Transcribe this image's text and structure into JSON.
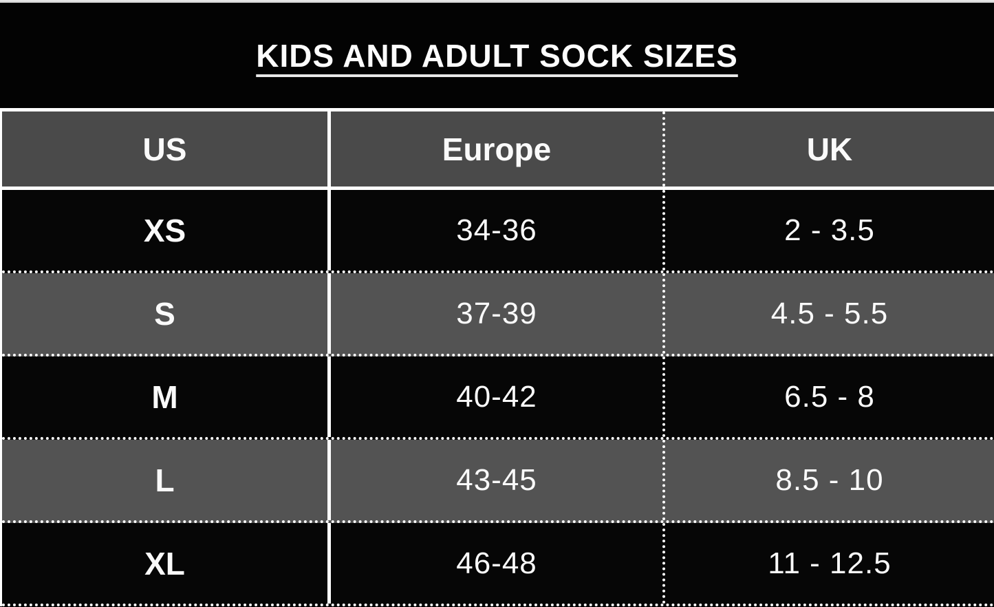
{
  "title": "KIDS AND ADULT SOCK SIZES",
  "columns": {
    "us": "US",
    "europe": "Europe",
    "uk": "UK"
  },
  "rows": [
    {
      "us": "XS",
      "europe": "34-36",
      "uk": "2 - 3.5"
    },
    {
      "us": "S",
      "europe": "37-39",
      "uk": "4.5 - 5.5"
    },
    {
      "us": "M",
      "europe": "40-42",
      "uk": "6.5 - 8"
    },
    {
      "us": "L",
      "europe": "43-45",
      "uk": "8.5 - 10"
    },
    {
      "us": "XL",
      "europe": "46-48",
      "uk": "11 - 12.5"
    }
  ],
  "colors": {
    "title_bg": "#030303",
    "header_bg": "#4a4a4a",
    "row_dark": "#060606",
    "row_light": "#535353",
    "grid_border": "#ffffff",
    "text": "#fafafa",
    "page_top_strip": "#e3e3e3"
  },
  "chart_data": {
    "type": "table",
    "title": "KIDS AND ADULT SOCK SIZES",
    "columns": [
      "US",
      "Europe",
      "UK"
    ],
    "rows": [
      [
        "XS",
        "34-36",
        "2 - 3.5"
      ],
      [
        "S",
        "37-39",
        "4.5 - 5.5"
      ],
      [
        "M",
        "40-42",
        "6.5 - 8"
      ],
      [
        "L",
        "43-45",
        "8.5 - 10"
      ],
      [
        "XL",
        "46-48",
        "11 - 12.5"
      ]
    ],
    "layout_hints": {
      "row_striping": [
        "black",
        "gray"
      ],
      "us_europe_divider": "solid",
      "europe_uk_divider": "dotted",
      "row_dividers": "dotted",
      "header_dividers": "solid"
    }
  }
}
